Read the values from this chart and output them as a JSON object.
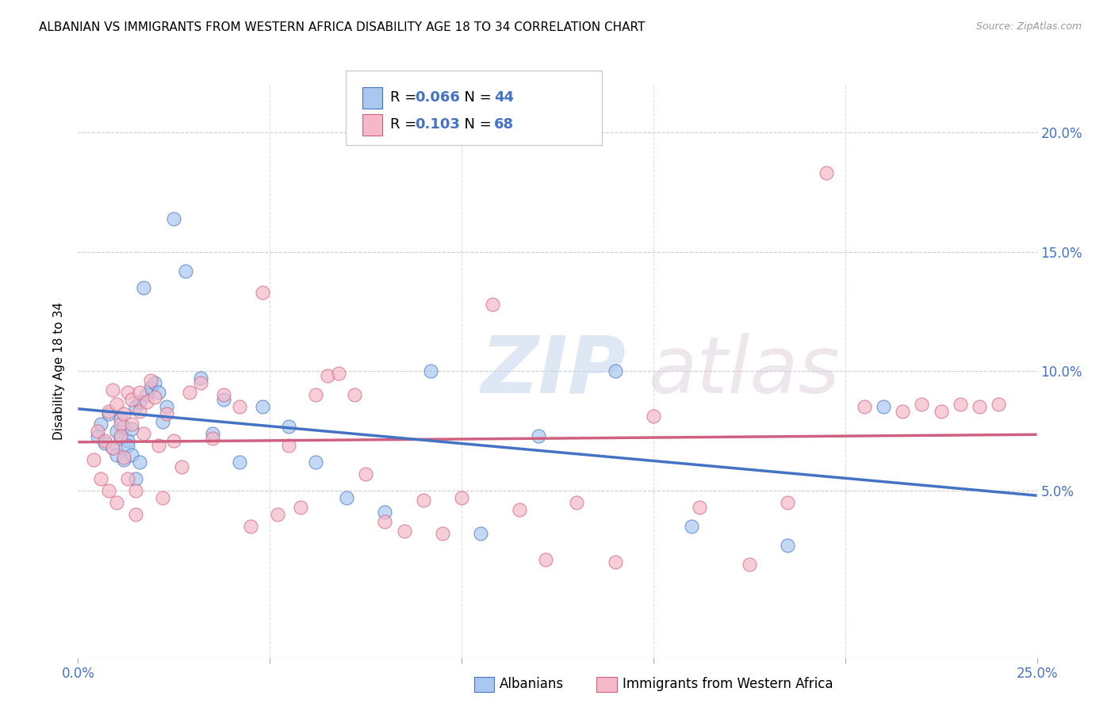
{
  "title": "ALBANIAN VS IMMIGRANTS FROM WESTERN AFRICA DISABILITY AGE 18 TO 34 CORRELATION CHART",
  "source": "Source: ZipAtlas.com",
  "ylabel": "Disability Age 18 to 34",
  "xlim": [
    0.0,
    0.25
  ],
  "ylim": [
    -0.02,
    0.22
  ],
  "yticks": [
    0.05,
    0.1,
    0.15,
    0.2
  ],
  "ytick_labels": [
    "5.0%",
    "10.0%",
    "15.0%",
    "20.0%"
  ],
  "xticks": [
    0.0,
    0.05,
    0.1,
    0.15,
    0.2,
    0.25
  ],
  "xtick_labels": [
    "0.0%",
    "",
    "",
    "",
    "",
    "25.0%"
  ],
  "albanian_color": "#a8c8f0",
  "albanian_color_dark": "#4472c4",
  "immigrant_color": "#f4b8c8",
  "immigrant_color_dark": "#d06080",
  "legend_r_albanian": "0.066",
  "legend_n_albanian": "44",
  "legend_r_immigrant": "0.103",
  "legend_n_immigrant": "68",
  "watermark_zip": "ZIP",
  "watermark_atlas": "atlas",
  "albanian_x": [
    0.005,
    0.006,
    0.007,
    0.008,
    0.009,
    0.01,
    0.01,
    0.011,
    0.011,
    0.012,
    0.012,
    0.013,
    0.013,
    0.014,
    0.014,
    0.015,
    0.015,
    0.016,
    0.016,
    0.017,
    0.018,
    0.019,
    0.02,
    0.021,
    0.022,
    0.023,
    0.025,
    0.028,
    0.032,
    0.035,
    0.038,
    0.042,
    0.048,
    0.055,
    0.062,
    0.07,
    0.08,
    0.092,
    0.105,
    0.12,
    0.14,
    0.16,
    0.185,
    0.21
  ],
  "albanian_y": [
    0.073,
    0.078,
    0.07,
    0.082,
    0.068,
    0.075,
    0.065,
    0.08,
    0.072,
    0.077,
    0.063,
    0.071,
    0.069,
    0.076,
    0.065,
    0.055,
    0.085,
    0.087,
    0.062,
    0.135,
    0.09,
    0.093,
    0.095,
    0.091,
    0.079,
    0.085,
    0.164,
    0.142,
    0.097,
    0.074,
    0.088,
    0.062,
    0.085,
    0.077,
    0.062,
    0.047,
    0.041,
    0.1,
    0.032,
    0.073,
    0.1,
    0.035,
    0.027,
    0.085
  ],
  "immigrant_x": [
    0.004,
    0.005,
    0.006,
    0.007,
    0.008,
    0.008,
    0.009,
    0.009,
    0.01,
    0.01,
    0.011,
    0.011,
    0.012,
    0.012,
    0.013,
    0.013,
    0.014,
    0.014,
    0.015,
    0.015,
    0.016,
    0.016,
    0.017,
    0.018,
    0.019,
    0.02,
    0.021,
    0.022,
    0.023,
    0.025,
    0.027,
    0.029,
    0.032,
    0.035,
    0.038,
    0.042,
    0.045,
    0.048,
    0.052,
    0.055,
    0.058,
    0.062,
    0.065,
    0.068,
    0.072,
    0.075,
    0.08,
    0.085,
    0.09,
    0.095,
    0.1,
    0.108,
    0.115,
    0.122,
    0.13,
    0.14,
    0.15,
    0.162,
    0.175,
    0.185,
    0.195,
    0.205,
    0.215,
    0.22,
    0.225,
    0.23,
    0.235,
    0.24
  ],
  "immigrant_y": [
    0.063,
    0.075,
    0.055,
    0.071,
    0.05,
    0.083,
    0.068,
    0.092,
    0.045,
    0.086,
    0.078,
    0.073,
    0.082,
    0.064,
    0.091,
    0.055,
    0.088,
    0.078,
    0.04,
    0.05,
    0.083,
    0.091,
    0.074,
    0.087,
    0.096,
    0.089,
    0.069,
    0.047,
    0.082,
    0.071,
    0.06,
    0.091,
    0.095,
    0.072,
    0.09,
    0.085,
    0.035,
    0.133,
    0.04,
    0.069,
    0.043,
    0.09,
    0.098,
    0.099,
    0.09,
    0.057,
    0.037,
    0.033,
    0.046,
    0.032,
    0.047,
    0.128,
    0.042,
    0.021,
    0.045,
    0.02,
    0.081,
    0.043,
    0.019,
    0.045,
    0.183,
    0.085,
    0.083,
    0.086,
    0.083,
    0.086,
    0.085,
    0.086
  ],
  "title_fontsize": 11,
  "blue_color": "#4472c4",
  "pink_line_color": "#d06080"
}
